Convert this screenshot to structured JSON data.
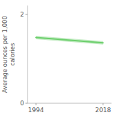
{
  "chart_data": {
    "type": "line",
    "ylabel": "Average ounces per 1,000\ncalories",
    "x": [
      1994,
      2018
    ],
    "values": [
      1.48,
      1.36
    ],
    "color": "#6ccf6c",
    "band": {
      "upper": [
        1.52,
        1.4
      ],
      "lower": [
        1.44,
        1.32
      ],
      "color": "#a0e0a0"
    },
    "xlim": [
      1991,
      2021
    ],
    "ylim": [
      0,
      2.2
    ],
    "xticks": [
      1994,
      2018
    ],
    "yticks": [
      0,
      2
    ],
    "grid": false
  }
}
